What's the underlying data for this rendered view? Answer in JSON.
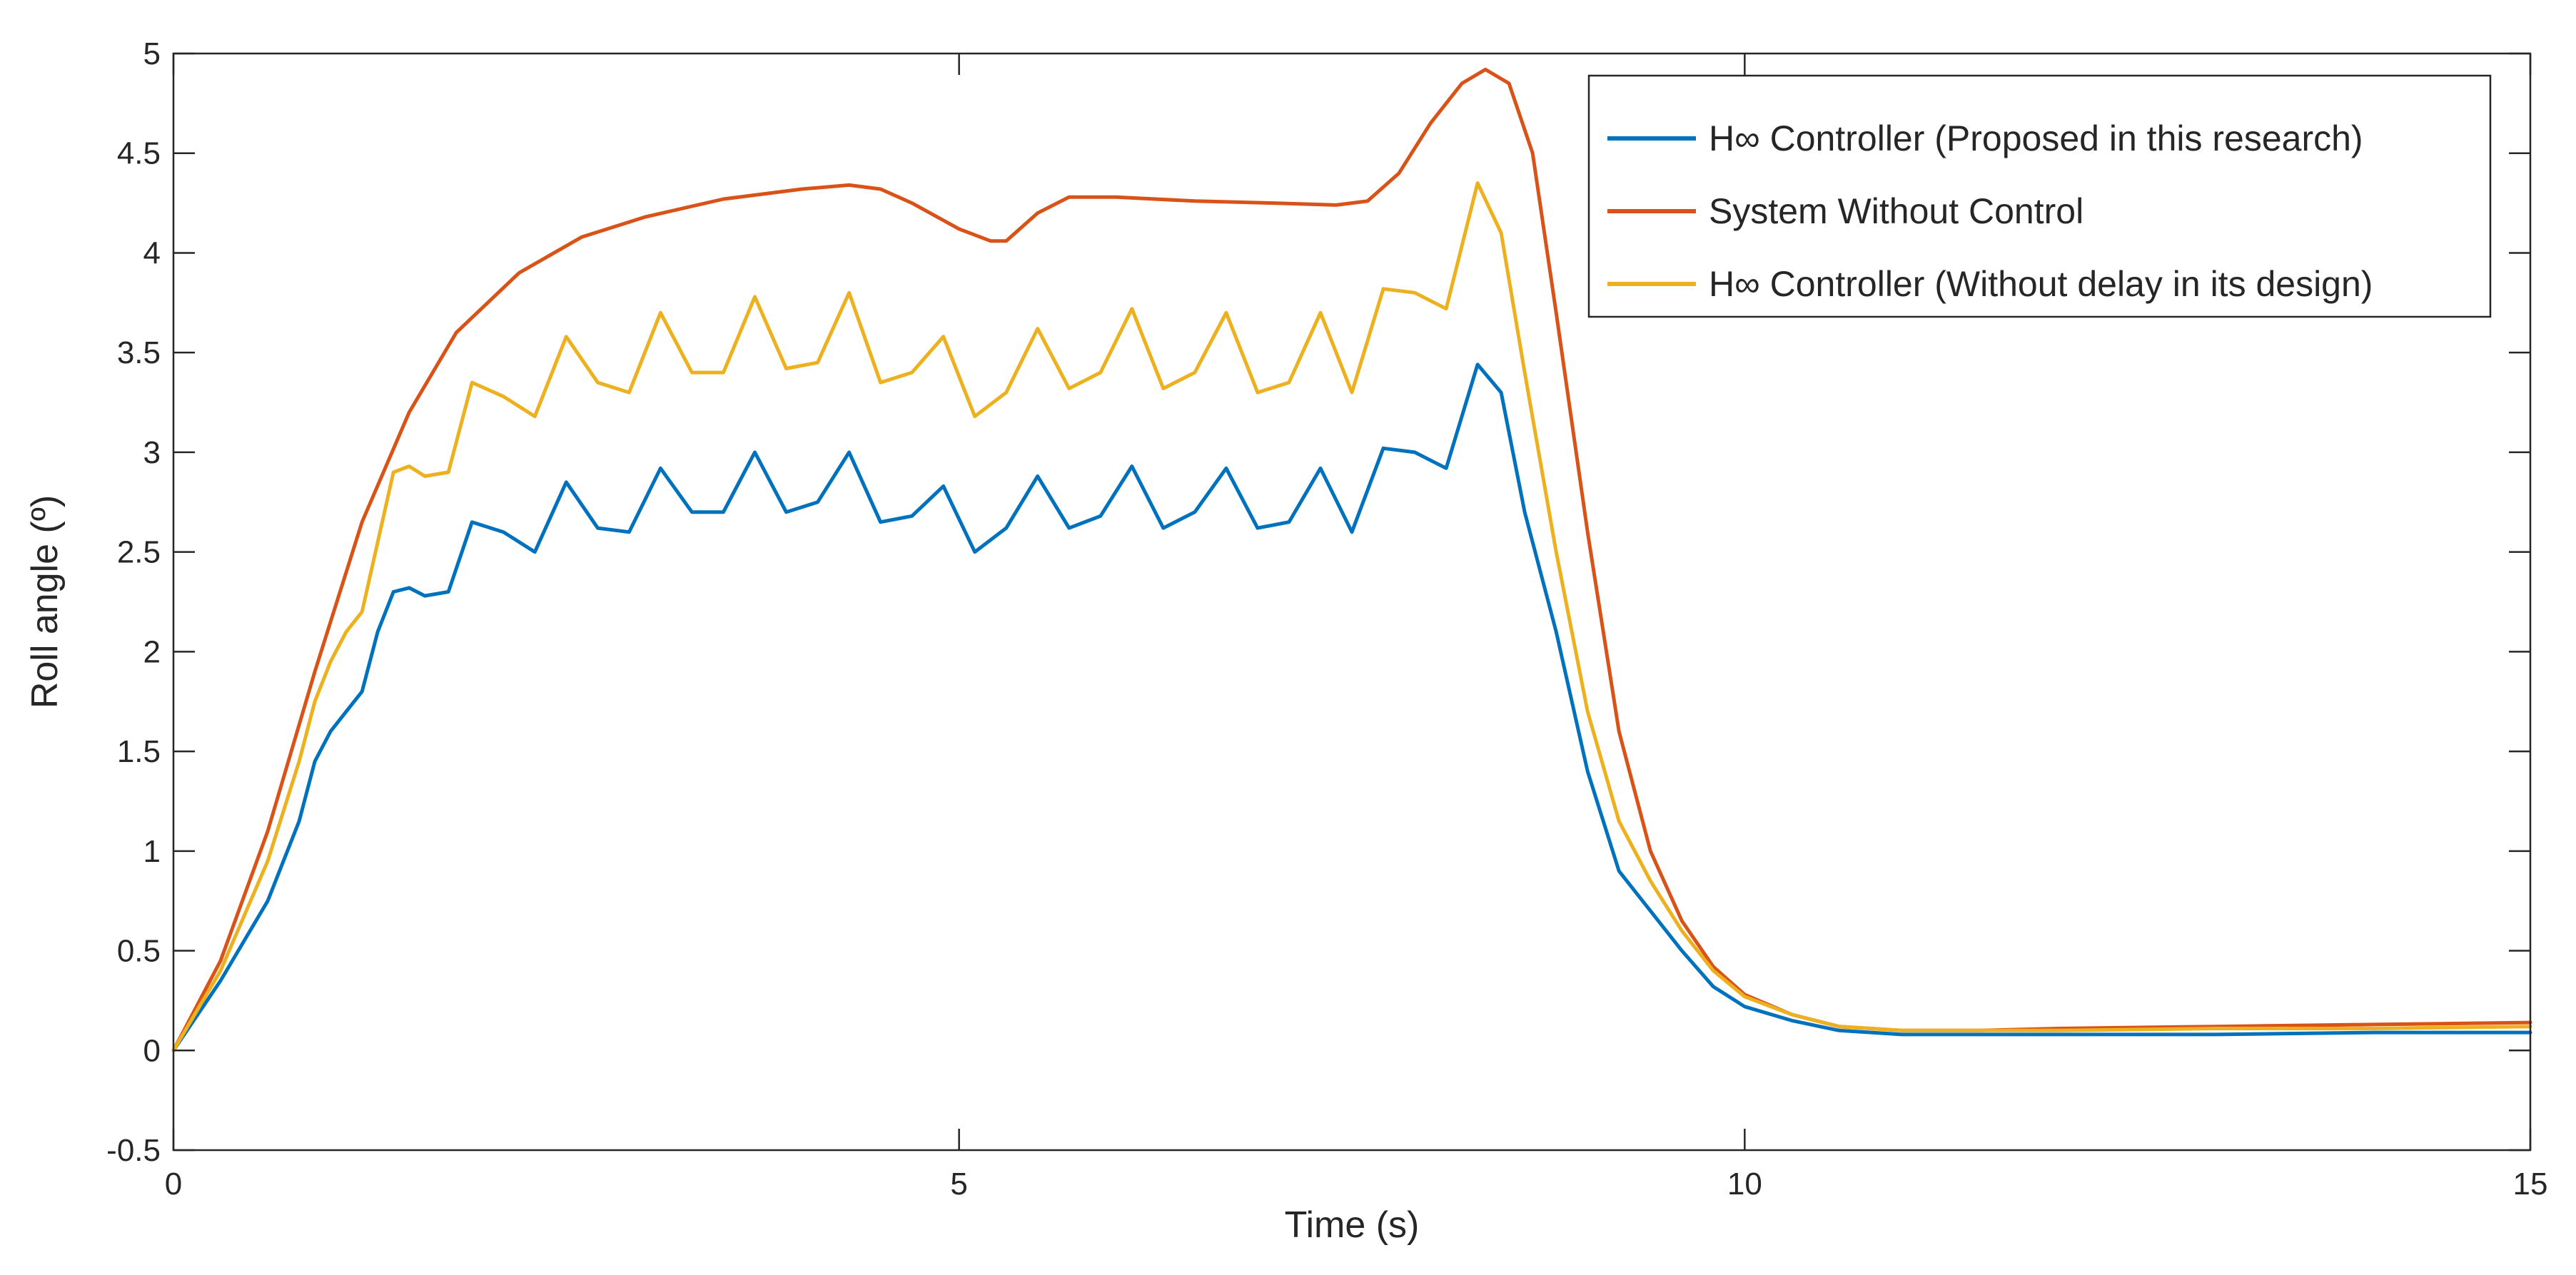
{
  "chart_data": {
    "type": "line",
    "title": "",
    "xlabel": "Time (s)",
    "ylabel": "Roll angle (º)",
    "xlim": [
      0,
      15
    ],
    "ylim": [
      -0.5,
      5
    ],
    "xticks": [
      0,
      5,
      10,
      15
    ],
    "xtick_labels": [
      "0",
      "5",
      "10",
      "15"
    ],
    "yticks": [
      -0.5,
      0,
      0.5,
      1,
      1.5,
      2,
      2.5,
      3,
      3.5,
      4,
      4.5,
      5
    ],
    "ytick_labels": [
      "-0.5",
      "0",
      "0.5",
      "1",
      "1.5",
      "2",
      "2.5",
      "3",
      "3.5",
      "4",
      "4.5",
      "5"
    ],
    "grid": false,
    "legend_position": "top-right",
    "series": [
      {
        "name": "H∞ Controller (Proposed in this research)",
        "color": "#0072BD",
        "x": [
          0,
          0.3,
          0.6,
          0.8,
          0.9,
          1.0,
          1.1,
          1.2,
          1.3,
          1.4,
          1.5,
          1.6,
          1.75,
          1.9,
          2.1,
          2.3,
          2.5,
          2.7,
          2.9,
          3.1,
          3.3,
          3.5,
          3.7,
          3.9,
          4.1,
          4.3,
          4.5,
          4.7,
          4.9,
          5.1,
          5.3,
          5.5,
          5.7,
          5.9,
          6.1,
          6.3,
          6.5,
          6.7,
          6.9,
          7.1,
          7.3,
          7.5,
          7.7,
          7.9,
          8.1,
          8.3,
          8.45,
          8.6,
          8.8,
          9.0,
          9.2,
          9.4,
          9.6,
          9.8,
          10.0,
          10.3,
          10.6,
          11.0,
          11.5,
          12,
          13,
          14,
          15
        ],
        "y": [
          0,
          0.35,
          0.75,
          1.15,
          1.45,
          1.6,
          1.7,
          1.8,
          2.1,
          2.3,
          2.32,
          2.28,
          2.3,
          2.65,
          2.6,
          2.5,
          2.85,
          2.62,
          2.6,
          2.92,
          2.7,
          2.7,
          3.0,
          2.7,
          2.75,
          3.0,
          2.65,
          2.68,
          2.83,
          2.5,
          2.62,
          2.88,
          2.62,
          2.68,
          2.93,
          2.62,
          2.7,
          2.92,
          2.62,
          2.65,
          2.92,
          2.6,
          3.02,
          3.0,
          2.92,
          3.44,
          3.3,
          2.7,
          2.1,
          1.4,
          0.9,
          0.7,
          0.5,
          0.32,
          0.22,
          0.15,
          0.1,
          0.08,
          0.08,
          0.08,
          0.08,
          0.09,
          0.09
        ]
      },
      {
        "name": "System Without Control",
        "color": "#D95319",
        "x": [
          0,
          0.3,
          0.6,
          0.9,
          1.2,
          1.5,
          1.8,
          2.2,
          2.6,
          3.0,
          3.5,
          4.0,
          4.3,
          4.5,
          4.7,
          5.0,
          5.2,
          5.3,
          5.5,
          5.7,
          6.0,
          6.5,
          7.0,
          7.4,
          7.6,
          7.8,
          8.0,
          8.2,
          8.35,
          8.5,
          8.65,
          8.8,
          9.0,
          9.2,
          9.4,
          9.6,
          9.8,
          10.0,
          10.3,
          10.6,
          11.0,
          11.5,
          12,
          13,
          14,
          15
        ],
        "y": [
          0,
          0.45,
          1.1,
          1.9,
          2.65,
          3.2,
          3.6,
          3.9,
          4.08,
          4.18,
          4.27,
          4.32,
          4.34,
          4.32,
          4.25,
          4.12,
          4.06,
          4.06,
          4.2,
          4.28,
          4.28,
          4.26,
          4.25,
          4.24,
          4.26,
          4.4,
          4.65,
          4.85,
          4.92,
          4.85,
          4.5,
          3.7,
          2.6,
          1.6,
          1.0,
          0.65,
          0.42,
          0.28,
          0.18,
          0.12,
          0.1,
          0.1,
          0.11,
          0.12,
          0.13,
          0.14
        ]
      },
      {
        "name": "H∞ Controller (Without delay in its design)",
        "color": "#EDB120",
        "x": [
          0,
          0.3,
          0.6,
          0.8,
          0.9,
          1.0,
          1.1,
          1.2,
          1.3,
          1.4,
          1.5,
          1.6,
          1.75,
          1.9,
          2.1,
          2.3,
          2.5,
          2.7,
          2.9,
          3.1,
          3.3,
          3.5,
          3.7,
          3.9,
          4.1,
          4.3,
          4.5,
          4.7,
          4.9,
          5.1,
          5.3,
          5.5,
          5.7,
          5.9,
          6.1,
          6.3,
          6.5,
          6.7,
          6.9,
          7.1,
          7.3,
          7.5,
          7.7,
          7.9,
          8.1,
          8.3,
          8.45,
          8.6,
          8.8,
          9.0,
          9.2,
          9.4,
          9.6,
          9.8,
          10.0,
          10.3,
          10.6,
          11.0,
          11.5,
          12,
          13,
          14,
          15
        ],
        "y": [
          0,
          0.4,
          0.95,
          1.45,
          1.75,
          1.95,
          2.1,
          2.2,
          2.55,
          2.9,
          2.93,
          2.88,
          2.9,
          3.35,
          3.28,
          3.18,
          3.58,
          3.35,
          3.3,
          3.7,
          3.4,
          3.4,
          3.78,
          3.42,
          3.45,
          3.8,
          3.35,
          3.4,
          3.58,
          3.18,
          3.3,
          3.62,
          3.32,
          3.4,
          3.72,
          3.32,
          3.4,
          3.7,
          3.3,
          3.35,
          3.7,
          3.3,
          3.82,
          3.8,
          3.72,
          4.35,
          4.1,
          3.4,
          2.5,
          1.7,
          1.15,
          0.85,
          0.6,
          0.4,
          0.27,
          0.18,
          0.12,
          0.1,
          0.1,
          0.1,
          0.11,
          0.11,
          0.12
        ]
      }
    ]
  }
}
